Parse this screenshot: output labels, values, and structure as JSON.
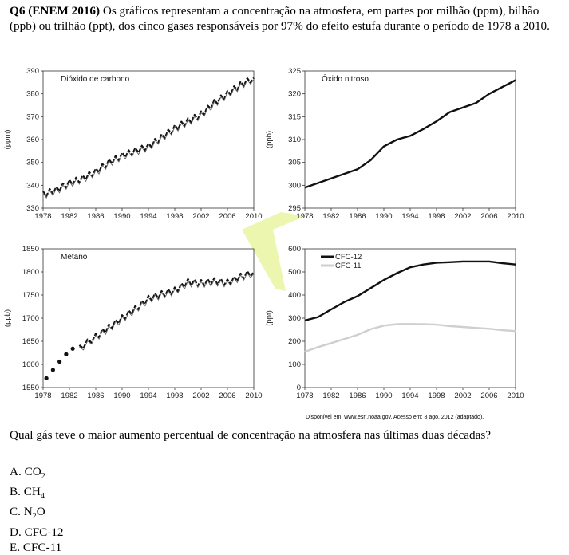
{
  "question": {
    "number": "Q6 (ENEM 2016)",
    "text": "Os gráficos representam a concentração na atmosfera, em partes por milhão (ppm), bilhão (ppb) ou trilhão (ppt), dos cinco gases responsáveis por 97% do efeito estufa durante o período de 1978 a 2010.",
    "prompt": "Qual gás teve o maior aumento percentual de concentração na atmosfera nas últimas duas décadas?",
    "source": "Disponível em: www.esrl.noaa.gov. Acesso em: 8 ago. 2012 (adaptado)."
  },
  "options": [
    {
      "letter": "A.",
      "label": "CO",
      "sub": "2"
    },
    {
      "letter": "B.",
      "label": "CH",
      "sub": "4"
    },
    {
      "letter": "C.",
      "label": "N",
      "sub": "2",
      "tail": "O"
    },
    {
      "letter": "D.",
      "label": "CFC-12",
      "sub": ""
    },
    {
      "letter": "E.",
      "label": "CFC-11",
      "sub": ""
    }
  ],
  "colors": {
    "series_dark": "#111111",
    "series_light": "#cfcfcf",
    "watermark": "#e9f5a0"
  },
  "chart_data": [
    {
      "type": "line",
      "title": "Dióxido de carbono",
      "ylabel": "(ppm)",
      "x": [
        1978,
        1980,
        1982,
        1984,
        1986,
        1988,
        1990,
        1992,
        1994,
        1996,
        1998,
        2000,
        2002,
        2004,
        2006,
        2008,
        2010
      ],
      "series": [
        {
          "values": [
            336,
            338,
            341,
            343,
            346,
            350,
            353,
            355,
            357,
            361,
            365,
            368,
            371,
            376,
            380,
            384,
            387
          ]
        }
      ],
      "xticks": [
        "1978",
        "1982",
        "1986",
        "1990",
        "1994",
        "1998",
        "2002",
        "2006",
        "2010"
      ],
      "yticks": [
        "330",
        "340",
        "350",
        "360",
        "370",
        "380",
        "390"
      ],
      "xlim": [
        1978,
        2010
      ],
      "ylim": [
        330,
        390
      ],
      "seasonal": true,
      "grid": false
    },
    {
      "type": "line",
      "title": "Óxido nitroso",
      "ylabel": "(ppb)",
      "x": [
        1978,
        1980,
        1982,
        1984,
        1986,
        1988,
        1990,
        1992,
        1994,
        1996,
        1998,
        2000,
        2002,
        2004,
        2006,
        2008,
        2010
      ],
      "series": [
        {
          "values": [
            299.5,
            300.5,
            301.5,
            302.5,
            303.5,
            305.5,
            308.5,
            310,
            310.8,
            312.3,
            314,
            316,
            317,
            318,
            320,
            321.5,
            323
          ]
        }
      ],
      "xticks": [
        "1978",
        "1982",
        "1986",
        "1990",
        "1994",
        "1998",
        "2002",
        "2006",
        "2010"
      ],
      "yticks": [
        "295",
        "300",
        "305",
        "310",
        "315",
        "320",
        "325"
      ],
      "xlim": [
        1978,
        2010
      ],
      "ylim": [
        295,
        325
      ],
      "seasonal": false,
      "grid": false
    },
    {
      "type": "line",
      "title": "Metano",
      "ylabel": "(ppb)",
      "x": [
        1983.5,
        1986,
        1988,
        1990,
        1992,
        1994,
        1996,
        1998,
        2000,
        2002,
        2004,
        2006,
        2008,
        2010
      ],
      "series": [
        {
          "values": [
            1635,
            1660,
            1680,
            1700,
            1720,
            1742,
            1752,
            1760,
            1778,
            1776,
            1780,
            1777,
            1790,
            1800
          ]
        }
      ],
      "points": {
        "x": [
          1978.5,
          1979.5,
          1980.5,
          1981.5,
          1982.5
        ],
        "values": [
          1570,
          1588,
          1606,
          1622,
          1634
        ]
      },
      "xticks": [
        "1978",
        "1982",
        "1986",
        "1990",
        "1994",
        "1998",
        "2002",
        "2006",
        "2010"
      ],
      "yticks": [
        "1550",
        "1600",
        "1650",
        "1700",
        "1750",
        "1800",
        "1850"
      ],
      "xlim": [
        1978,
        2010
      ],
      "ylim": [
        1550,
        1850
      ],
      "seasonal": true,
      "grid": false
    },
    {
      "type": "line",
      "title": "",
      "ylabel": "(ppt)",
      "x": [
        1978,
        1980,
        1982,
        1984,
        1986,
        1988,
        1990,
        1992,
        1994,
        1996,
        1998,
        2000,
        2002,
        2004,
        2006,
        2008,
        2010
      ],
      "series": [
        {
          "name": "CFC-12",
          "color": "#111111",
          "values": [
            290,
            305,
            338,
            370,
            395,
            430,
            465,
            495,
            520,
            532,
            540,
            542,
            545,
            545,
            545,
            538,
            532
          ]
        },
        {
          "name": "CFC-11",
          "color": "#cfcfcf",
          "values": [
            155,
            175,
            192,
            210,
            228,
            252,
            268,
            274,
            275,
            274,
            272,
            266,
            262,
            258,
            254,
            248,
            244
          ]
        }
      ],
      "xticks": [
        "1978",
        "1982",
        "1986",
        "1990",
        "1994",
        "1998",
        "2002",
        "2006",
        "2010"
      ],
      "yticks": [
        "0",
        "100",
        "200",
        "300",
        "400",
        "500",
        "600"
      ],
      "xlim": [
        1978,
        2010
      ],
      "ylim": [
        0,
        600
      ],
      "legend": "top-left",
      "grid": false
    }
  ]
}
